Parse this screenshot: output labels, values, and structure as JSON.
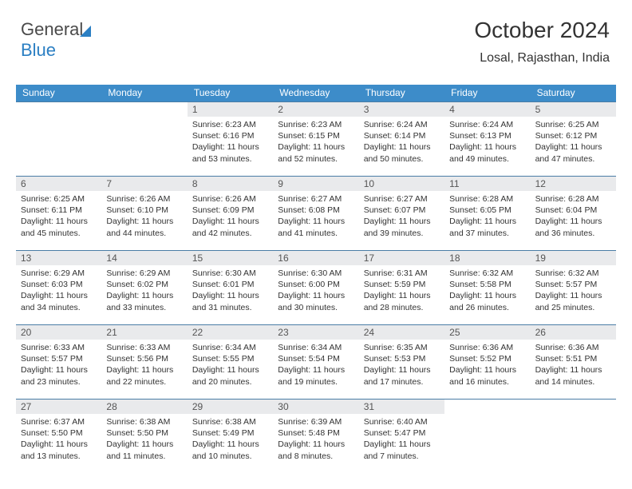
{
  "logo": {
    "word1": "General",
    "word2": "Blue"
  },
  "title": "October 2024",
  "subtitle": "Losal, Rajasthan, India",
  "colors": {
    "header_bg": "#3d8cc9",
    "header_fg": "#ffffff",
    "row_border": "#4a7da6",
    "daynum_bg": "#e9eaec",
    "body_fg": "#333333",
    "brand_blue": "#2b7fc3"
  },
  "days_of_week": [
    "Sunday",
    "Monday",
    "Tuesday",
    "Wednesday",
    "Thursday",
    "Friday",
    "Saturday"
  ],
  "leading_blanks": 2,
  "trailing_blanks": 2,
  "days": [
    {
      "n": 1,
      "sunrise": "6:23 AM",
      "sunset": "6:16 PM",
      "daylight": "11 hours and 53 minutes."
    },
    {
      "n": 2,
      "sunrise": "6:23 AM",
      "sunset": "6:15 PM",
      "daylight": "11 hours and 52 minutes."
    },
    {
      "n": 3,
      "sunrise": "6:24 AM",
      "sunset": "6:14 PM",
      "daylight": "11 hours and 50 minutes."
    },
    {
      "n": 4,
      "sunrise": "6:24 AM",
      "sunset": "6:13 PM",
      "daylight": "11 hours and 49 minutes."
    },
    {
      "n": 5,
      "sunrise": "6:25 AM",
      "sunset": "6:12 PM",
      "daylight": "11 hours and 47 minutes."
    },
    {
      "n": 6,
      "sunrise": "6:25 AM",
      "sunset": "6:11 PM",
      "daylight": "11 hours and 45 minutes."
    },
    {
      "n": 7,
      "sunrise": "6:26 AM",
      "sunset": "6:10 PM",
      "daylight": "11 hours and 44 minutes."
    },
    {
      "n": 8,
      "sunrise": "6:26 AM",
      "sunset": "6:09 PM",
      "daylight": "11 hours and 42 minutes."
    },
    {
      "n": 9,
      "sunrise": "6:27 AM",
      "sunset": "6:08 PM",
      "daylight": "11 hours and 41 minutes."
    },
    {
      "n": 10,
      "sunrise": "6:27 AM",
      "sunset": "6:07 PM",
      "daylight": "11 hours and 39 minutes."
    },
    {
      "n": 11,
      "sunrise": "6:28 AM",
      "sunset": "6:05 PM",
      "daylight": "11 hours and 37 minutes."
    },
    {
      "n": 12,
      "sunrise": "6:28 AM",
      "sunset": "6:04 PM",
      "daylight": "11 hours and 36 minutes."
    },
    {
      "n": 13,
      "sunrise": "6:29 AM",
      "sunset": "6:03 PM",
      "daylight": "11 hours and 34 minutes."
    },
    {
      "n": 14,
      "sunrise": "6:29 AM",
      "sunset": "6:02 PM",
      "daylight": "11 hours and 33 minutes."
    },
    {
      "n": 15,
      "sunrise": "6:30 AM",
      "sunset": "6:01 PM",
      "daylight": "11 hours and 31 minutes."
    },
    {
      "n": 16,
      "sunrise": "6:30 AM",
      "sunset": "6:00 PM",
      "daylight": "11 hours and 30 minutes."
    },
    {
      "n": 17,
      "sunrise": "6:31 AM",
      "sunset": "5:59 PM",
      "daylight": "11 hours and 28 minutes."
    },
    {
      "n": 18,
      "sunrise": "6:32 AM",
      "sunset": "5:58 PM",
      "daylight": "11 hours and 26 minutes."
    },
    {
      "n": 19,
      "sunrise": "6:32 AM",
      "sunset": "5:57 PM",
      "daylight": "11 hours and 25 minutes."
    },
    {
      "n": 20,
      "sunrise": "6:33 AM",
      "sunset": "5:57 PM",
      "daylight": "11 hours and 23 minutes."
    },
    {
      "n": 21,
      "sunrise": "6:33 AM",
      "sunset": "5:56 PM",
      "daylight": "11 hours and 22 minutes."
    },
    {
      "n": 22,
      "sunrise": "6:34 AM",
      "sunset": "5:55 PM",
      "daylight": "11 hours and 20 minutes."
    },
    {
      "n": 23,
      "sunrise": "6:34 AM",
      "sunset": "5:54 PM",
      "daylight": "11 hours and 19 minutes."
    },
    {
      "n": 24,
      "sunrise": "6:35 AM",
      "sunset": "5:53 PM",
      "daylight": "11 hours and 17 minutes."
    },
    {
      "n": 25,
      "sunrise": "6:36 AM",
      "sunset": "5:52 PM",
      "daylight": "11 hours and 16 minutes."
    },
    {
      "n": 26,
      "sunrise": "6:36 AM",
      "sunset": "5:51 PM",
      "daylight": "11 hours and 14 minutes."
    },
    {
      "n": 27,
      "sunrise": "6:37 AM",
      "sunset": "5:50 PM",
      "daylight": "11 hours and 13 minutes."
    },
    {
      "n": 28,
      "sunrise": "6:38 AM",
      "sunset": "5:50 PM",
      "daylight": "11 hours and 11 minutes."
    },
    {
      "n": 29,
      "sunrise": "6:38 AM",
      "sunset": "5:49 PM",
      "daylight": "11 hours and 10 minutes."
    },
    {
      "n": 30,
      "sunrise": "6:39 AM",
      "sunset": "5:48 PM",
      "daylight": "11 hours and 8 minutes."
    },
    {
      "n": 31,
      "sunrise": "6:40 AM",
      "sunset": "5:47 PM",
      "daylight": "11 hours and 7 minutes."
    }
  ],
  "labels": {
    "sunrise": "Sunrise:",
    "sunset": "Sunset:",
    "daylight": "Daylight:"
  }
}
